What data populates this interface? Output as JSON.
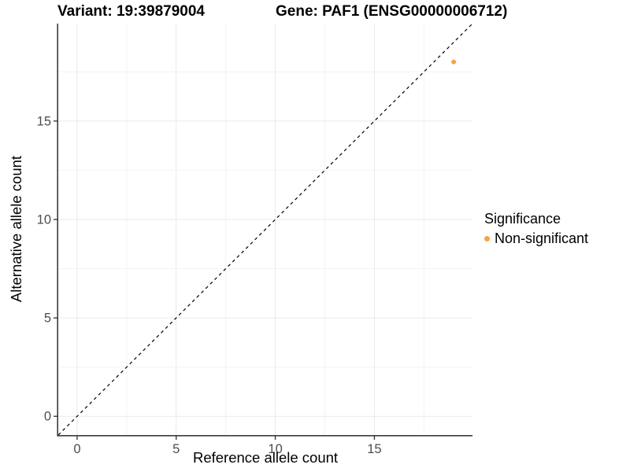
{
  "figure": {
    "titles": {
      "variant": "Variant: 19:39879004",
      "gene": "Gene: PAF1 (ENSG00000006712)"
    },
    "legend": {
      "title": "Significance",
      "items": [
        {
          "label": "Non-significant",
          "color": "#F9A242"
        }
      ]
    }
  },
  "chart_data": {
    "type": "scatter",
    "title": "Variant: 19:39879004   Gene: PAF1 (ENSG00000006712)",
    "xlabel": "Reference allele count",
    "ylabel": "Alternative allele count",
    "xlim": [
      -0.95,
      19.95
    ],
    "ylim": [
      -0.95,
      19.95
    ],
    "x_ticks": [
      0,
      5,
      10,
      15
    ],
    "y_ticks": [
      0,
      5,
      10,
      15
    ],
    "x_minor_ticks": [
      2.5,
      7.5,
      12.5,
      17.5
    ],
    "y_minor_ticks": [
      2.5,
      7.5,
      12.5,
      17.5
    ],
    "grid": true,
    "legend_position": "right",
    "legend_title": "Significance",
    "series": [
      {
        "name": "Non-significant",
        "color": "#F9A242",
        "points": [
          {
            "x": 19,
            "y": 18
          }
        ]
      }
    ],
    "reference_line": {
      "type": "identity y=x",
      "style": "dashed",
      "color": "#000000"
    },
    "colors": {
      "grid_major": "#e9e9e9",
      "grid_minor": "#f3f3f3",
      "axis_line": "#3c3c3c",
      "tick_label": "#4d4d4d",
      "point": "#F9A242"
    }
  }
}
